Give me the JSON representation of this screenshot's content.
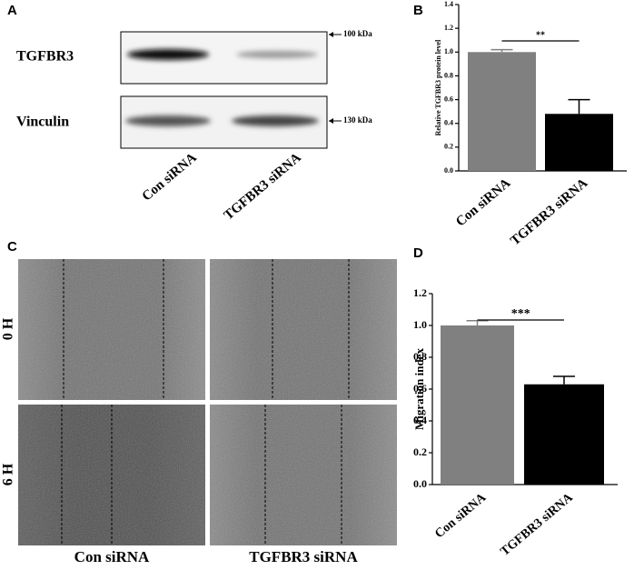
{
  "blot_panel": {
    "label": "A",
    "rows": [
      "TGFBR3",
      "Vinculin"
    ],
    "markers": [
      "100 kDa",
      "130 kDa"
    ],
    "lanes": [
      "Con siRNA",
      "TGFBR3 siRNA"
    ]
  },
  "wound_panel": {
    "label": "C",
    "rows": [
      "0 H",
      "6 H"
    ],
    "columns": [
      "Con siRNA",
      "TGFBR3 siRNA"
    ]
  },
  "chart_data": [
    {
      "type": "bar",
      "panel": "B",
      "y_label": "Relative TGFBR3 protein level",
      "categories": [
        "Con siRNA",
        "TGFBR3 siRNA"
      ],
      "values": [
        1.0,
        0.48
      ],
      "errors": [
        0.02,
        0.12
      ],
      "colors": [
        "#808080",
        "#000000"
      ],
      "significance": "**",
      "ylim": [
        0,
        1.4
      ],
      "yticks": [
        {
          "value": 0,
          "label": "0.0"
        },
        {
          "value": 0.2,
          "label": "0.2"
        },
        {
          "value": 0.4,
          "label": "0.4"
        },
        {
          "value": 0.6,
          "label": "0.6"
        },
        {
          "value": 0.8,
          "label": "0.8"
        },
        {
          "value": 1,
          "label": "1.0"
        },
        {
          "value": 1.2,
          "label": "1.2"
        },
        {
          "value": 1.4,
          "label": "1.4"
        }
      ]
    },
    {
      "type": "bar",
      "panel": "D",
      "y_label": "Migration index",
      "categories": [
        "Con siRNA",
        "TGFBR3 siRNA"
      ],
      "values": [
        1.0,
        0.63
      ],
      "errors": [
        0.03,
        0.05
      ],
      "colors": [
        "#808080",
        "#000000"
      ],
      "significance": "***",
      "ylim": [
        0,
        1.2
      ],
      "yticks": [
        {
          "value": 0,
          "label": "0.0"
        },
        {
          "value": 0.2,
          "label": "0.2"
        },
        {
          "value": 0.4,
          "label": "0.4"
        },
        {
          "value": 0.6,
          "label": "0.6"
        },
        {
          "value": 0.8,
          "label": "0.8"
        },
        {
          "value": 1,
          "label": "1.0"
        },
        {
          "value": 1.2,
          "label": "1.2"
        }
      ]
    }
  ]
}
